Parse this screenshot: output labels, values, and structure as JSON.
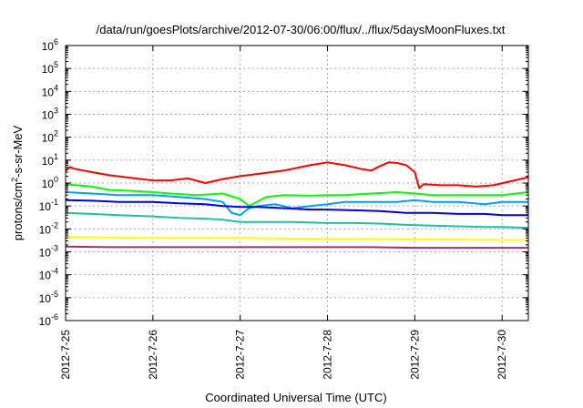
{
  "chart_data": {
    "type": "line",
    "title": "/data/run/goesPlots/archive/2012-07-30/06:00/flux/../flux/5daysMoonFluxes.txt",
    "xlabel": "Coordinated Universal Time (UTC)",
    "ylabel": {
      "base": "protons/cm",
      "sup": "2",
      "rest": "-s-sr-MeV"
    },
    "yscale": "log",
    "ylim": [
      1e-06,
      1000000.0
    ],
    "y_tick_exponents": [
      -6,
      -5,
      -4,
      -3,
      -2,
      -1,
      0,
      1,
      2,
      3,
      4,
      5,
      6
    ],
    "y_tick_base": "10",
    "x_unit": "days",
    "xlim": [
      0,
      5.3
    ],
    "x_ticks": [
      {
        "day": 0,
        "label": "2012-7-25"
      },
      {
        "day": 1,
        "label": "2012-7-26"
      },
      {
        "day": 2,
        "label": "2012-7-27"
      },
      {
        "day": 3,
        "label": "2012-7-28"
      },
      {
        "day": 4,
        "label": "2012-7-29"
      },
      {
        "day": 5,
        "label": "2012-7-30"
      }
    ],
    "grid": true,
    "series": [
      {
        "color": "#ff0000",
        "x": [
          0,
          0.05,
          0.1,
          0.3,
          0.5,
          0.8,
          1.0,
          1.2,
          1.4,
          1.6,
          1.8,
          2.0,
          2.2,
          2.5,
          2.8,
          3.0,
          3.2,
          3.4,
          3.5,
          3.6,
          3.7,
          3.8,
          3.9,
          4.0,
          4.05,
          4.1,
          4.3,
          4.5,
          4.7,
          4.9,
          5.1,
          5.3
        ],
        "y": [
          3.5,
          5.0,
          4.2,
          3.0,
          2.2,
          1.6,
          1.3,
          1.3,
          1.6,
          1.0,
          1.5,
          2.0,
          2.5,
          3.5,
          6.0,
          8.0,
          6.0,
          4.0,
          3.5,
          5.5,
          8.0,
          7.5,
          6.0,
          3.0,
          0.6,
          0.9,
          0.8,
          0.8,
          0.7,
          0.8,
          1.2,
          1.8
        ]
      },
      {
        "color": "#00ff00",
        "x": [
          0,
          0.3,
          0.5,
          0.8,
          1.0,
          1.2,
          1.5,
          1.8,
          2.0,
          2.1,
          2.3,
          2.5,
          2.8,
          3.0,
          3.2,
          3.5,
          3.8,
          4.0,
          4.2,
          4.5,
          4.8,
          5.0,
          5.3
        ],
        "y": [
          0.9,
          0.7,
          0.5,
          0.45,
          0.4,
          0.35,
          0.3,
          0.35,
          0.2,
          0.1,
          0.25,
          0.3,
          0.28,
          0.3,
          0.3,
          0.35,
          0.4,
          0.35,
          0.3,
          0.3,
          0.3,
          0.3,
          0.4
        ]
      },
      {
        "color": "#00a0ff",
        "x": [
          0,
          0.3,
          0.6,
          1.0,
          1.3,
          1.6,
          1.8,
          1.9,
          2.0,
          2.1,
          2.2,
          2.4,
          2.6,
          2.8,
          3.0,
          3.2,
          3.5,
          3.8,
          4.0,
          4.2,
          4.5,
          4.8,
          5.0,
          5.3
        ],
        "y": [
          0.4,
          0.35,
          0.3,
          0.3,
          0.25,
          0.2,
          0.15,
          0.05,
          0.04,
          0.08,
          0.1,
          0.12,
          0.08,
          0.1,
          0.12,
          0.15,
          0.15,
          0.15,
          0.18,
          0.15,
          0.15,
          0.12,
          0.15,
          0.15
        ]
      },
      {
        "color": "#0000e0",
        "x": [
          0,
          0.3,
          0.6,
          1.0,
          1.3,
          1.6,
          1.8,
          2.0,
          2.2,
          2.5,
          2.8,
          3.0,
          3.3,
          3.6,
          3.9,
          4.2,
          4.5,
          4.8,
          5.0,
          5.3
        ],
        "y": [
          0.18,
          0.17,
          0.15,
          0.15,
          0.13,
          0.12,
          0.1,
          0.09,
          0.09,
          0.08,
          0.07,
          0.07,
          0.065,
          0.06,
          0.05,
          0.05,
          0.045,
          0.045,
          0.04,
          0.04
        ]
      },
      {
        "color": "#20c0a0",
        "x": [
          0,
          0.3,
          0.6,
          1.0,
          1.3,
          1.6,
          1.8,
          2.0,
          2.3,
          2.6,
          3.0,
          3.3,
          3.6,
          3.9,
          4.2,
          4.5,
          4.8,
          5.0,
          5.3
        ],
        "y": [
          0.05,
          0.045,
          0.04,
          0.035,
          0.03,
          0.028,
          0.025,
          0.02,
          0.02,
          0.02,
          0.018,
          0.018,
          0.017,
          0.015,
          0.014,
          0.013,
          0.012,
          0.012,
          0.011
        ]
      },
      {
        "color": "#ffff00",
        "x": [
          0,
          0.5,
          1.0,
          1.5,
          2.0,
          2.5,
          3.0,
          3.5,
          4.0,
          4.5,
          5.0,
          5.3
        ],
        "y": [
          0.0045,
          0.0042,
          0.004,
          0.004,
          0.004,
          0.0038,
          0.0037,
          0.0036,
          0.0035,
          0.0034,
          0.0033,
          0.0033
        ]
      },
      {
        "color": "#a03070",
        "x": [
          0,
          0.5,
          1.0,
          1.5,
          2.0,
          2.5,
          3.0,
          3.5,
          4.0,
          4.5,
          5.0,
          5.3
        ],
        "y": [
          0.0017,
          0.0016,
          0.0016,
          0.0016,
          0.0016,
          0.0016,
          0.0016,
          0.0016,
          0.0015,
          0.0015,
          0.0015,
          0.0015
        ]
      }
    ]
  }
}
